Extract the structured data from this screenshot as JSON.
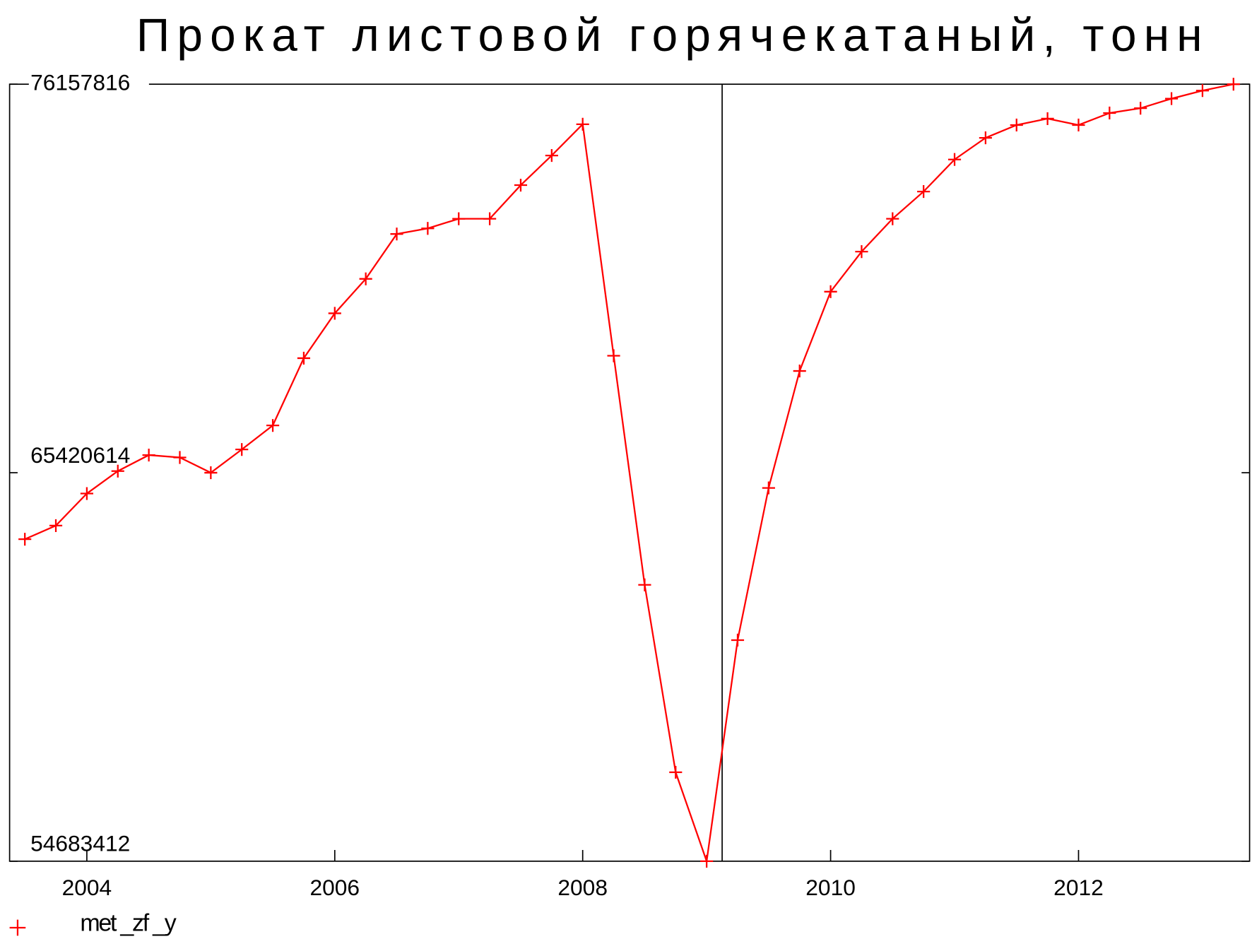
{
  "chart_data": {
    "type": "line",
    "title": "Прокат листовой горячекатаный, тонн",
    "x": [
      2003.5,
      2003.75,
      2004,
      2004.25,
      2004.5,
      2004.75,
      2005,
      2005.25,
      2005.5,
      2005.75,
      2006,
      2006.25,
      2006.5,
      2006.75,
      2007,
      2007.25,
      2007.5,
      2007.75,
      2008,
      2008.25,
      2008.5,
      2008.75,
      2009,
      2009.25,
      2009.5,
      2009.75,
      2010,
      2010.25,
      2010.5,
      2010.75,
      2011,
      2011.25,
      2011.5,
      2011.75,
      2012,
      2012.25,
      2012.5,
      2012.75,
      2013,
      2013.25
    ],
    "series": [
      {
        "name": "met _zf _y",
        "color": "#ff0000",
        "values": [
          63583000,
          63959000,
          64845000,
          65465000,
          65908000,
          65841000,
          65420000,
          66063000,
          66727000,
          68586000,
          69826000,
          70778000,
          72018000,
          72173000,
          72439000,
          72439000,
          73368000,
          74187000,
          75051000,
          68653000,
          62321000,
          57141000,
          54683412,
          60794000,
          65000000,
          68232000,
          70424000,
          71531000,
          72439000,
          73191000,
          74077000,
          74675000,
          75029000,
          75206000,
          75029000,
          75361000,
          75494000,
          75759000,
          75981000,
          76157816
        ]
      }
    ],
    "xlim": [
      2003.377,
      2013.38
    ],
    "xticks": [
      2004,
      2006,
      2008,
      2010,
      2012
    ],
    "ylim": [
      54683412,
      76157816
    ],
    "yticks": [
      54683412,
      65420614,
      76157816
    ],
    "vline": 2009.125
  }
}
